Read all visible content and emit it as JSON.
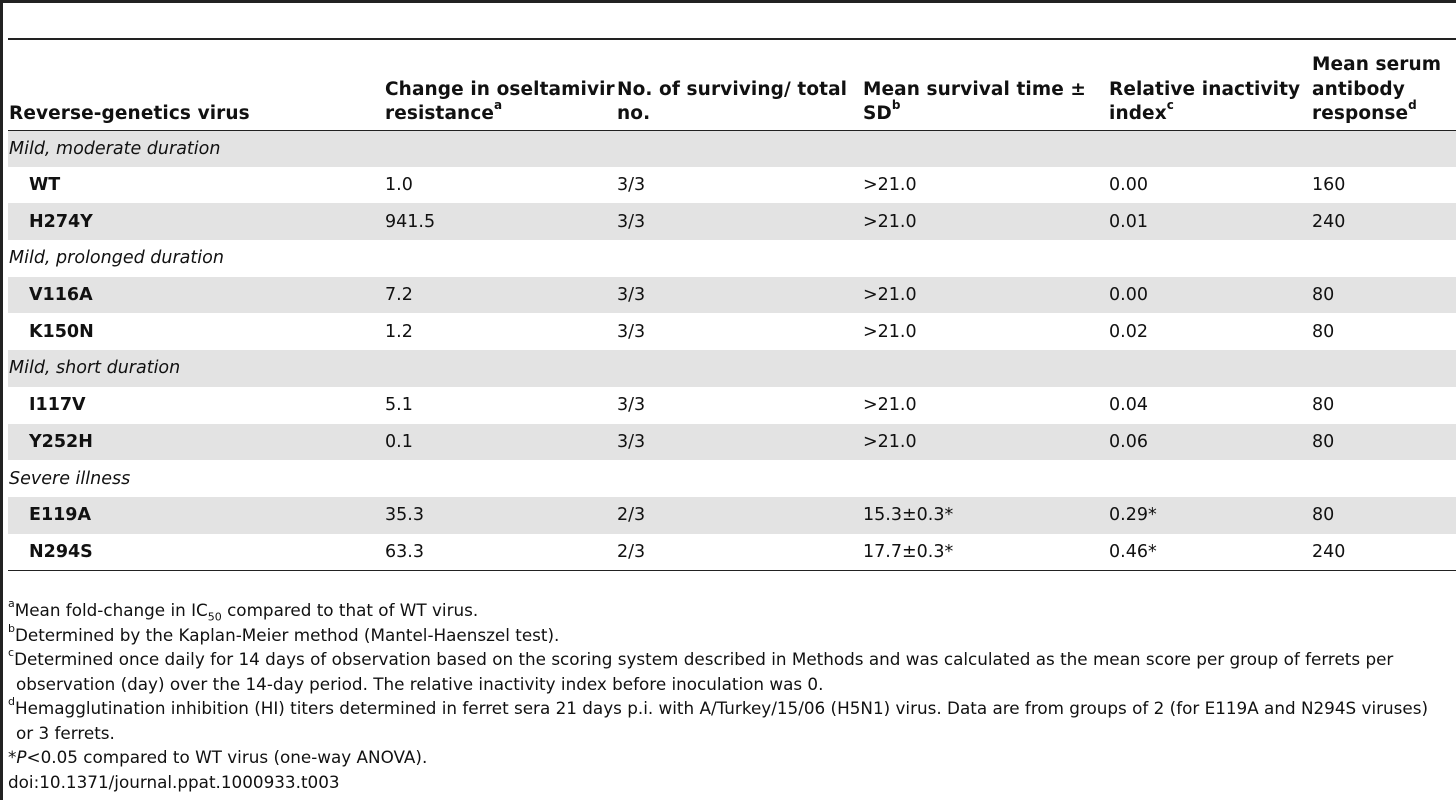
{
  "table": {
    "headers": [
      {
        "text": "Reverse-genetics virus",
        "sup": ""
      },
      {
        "text": "Change in oseltamivir resistance",
        "sup": "a"
      },
      {
        "text": "No. of surviving/ total no.",
        "sup": ""
      },
      {
        "text": "Mean survival time ± SD",
        "sup": "b"
      },
      {
        "text": "Relative inactivity index",
        "sup": "c"
      },
      {
        "text": "Mean serum antibody response",
        "sup": "d"
      }
    ],
    "groups": [
      {
        "label": "Mild, moderate duration",
        "rows": [
          [
            "WT",
            "1.0",
            "3/3",
            ">21.0",
            "0.00",
            "160"
          ],
          [
            "H274Y",
            "941.5",
            "3/3",
            ">21.0",
            "0.01",
            "240"
          ]
        ]
      },
      {
        "label": "Mild, prolonged duration",
        "rows": [
          [
            "V116A",
            "7.2",
            "3/3",
            ">21.0",
            "0.00",
            "80"
          ],
          [
            "K150N",
            "1.2",
            "3/3",
            ">21.0",
            "0.02",
            "80"
          ]
        ]
      },
      {
        "label": "Mild, short duration",
        "rows": [
          [
            "I117V",
            "5.1",
            "3/3",
            ">21.0",
            "0.04",
            "80"
          ],
          [
            "Y252H",
            "0.1",
            "3/3",
            ">21.0",
            "0.06",
            "80"
          ]
        ]
      },
      {
        "label": "Severe illness",
        "rows": [
          [
            "E119A",
            "35.3",
            "2/3",
            "15.3±0.3*",
            "0.29*",
            "80"
          ],
          [
            "N294S",
            "63.3",
            "2/3",
            "17.7±0.3*",
            "0.46*",
            "240"
          ]
        ]
      }
    ]
  },
  "footnotes": {
    "a": {
      "mark": "a",
      "before": "Mean fold-change in IC",
      "sub": "50",
      "after": " compared to that of WT virus."
    },
    "b": {
      "mark": "b",
      "text": "Determined by the Kaplan-Meier method (Mantel-Haenszel test)."
    },
    "c": {
      "mark": "c",
      "line1": "Determined once daily for 14 days of observation based on the scoring system described in Methods and was calculated as the mean score per group of ferrets per",
      "line2": "observation (day) over the 14-day period. The relative inactivity index before inoculation was 0."
    },
    "d": {
      "mark": "d",
      "line1": "Hemagglutination inhibition (HI) titers determined in ferret sera 21 days p.i. with A/Turkey/15/06 (H5N1) virus. Data are from groups of 2 (for E119A and N294S viruses)",
      "line2": "or 3 ferrets."
    },
    "star": {
      "mark": "*",
      "p": "P",
      "text": "<0.05 compared to WT virus (one-way ANOVA)."
    }
  },
  "doi": "doi:10.1371/journal.ppat.1000933.t003"
}
